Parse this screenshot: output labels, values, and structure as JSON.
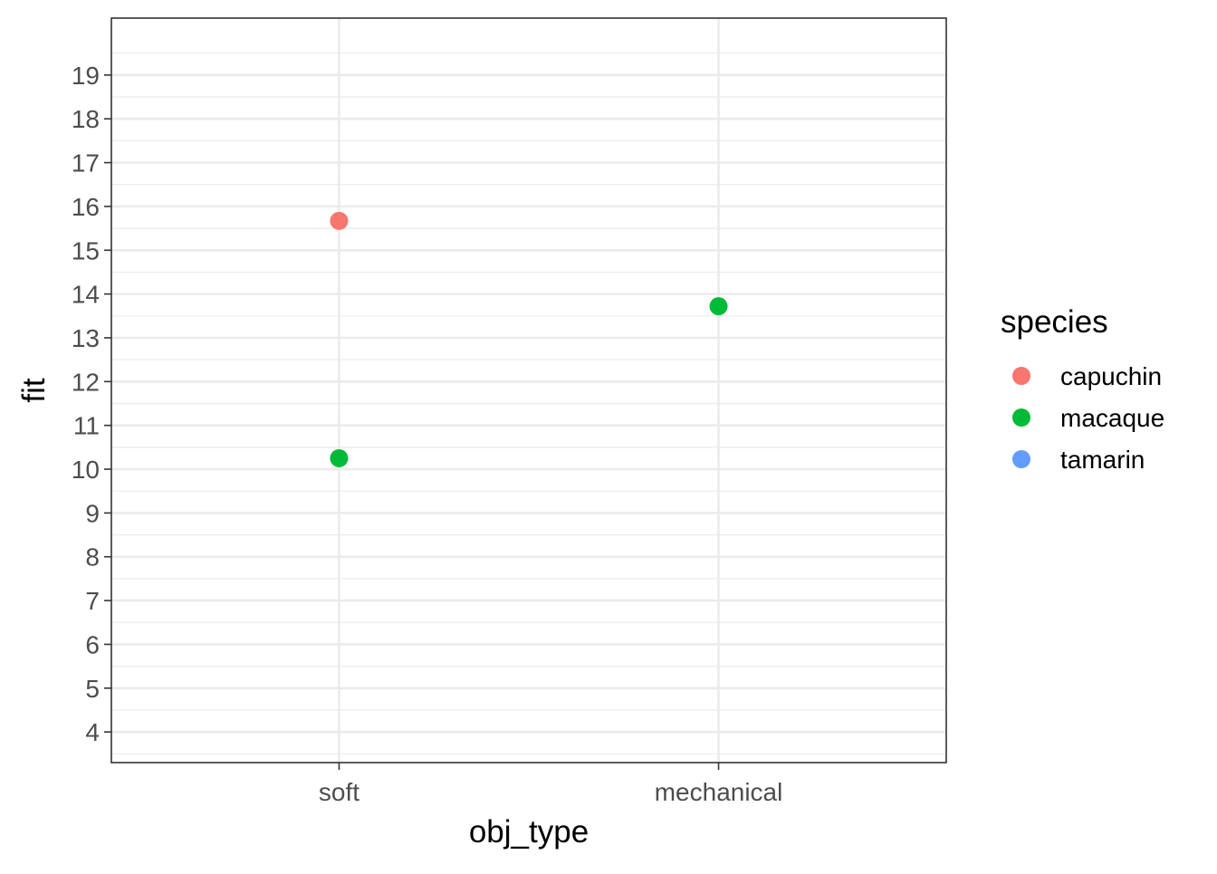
{
  "chart_data": {
    "type": "scatter",
    "xlabel": "obj_type",
    "ylabel": "fit",
    "categories": [
      "soft",
      "mechanical"
    ],
    "ylim": [
      3.3,
      20.3
    ],
    "y_ticks": [
      "4",
      "5",
      "6",
      "7",
      "8",
      "9",
      "10",
      "11",
      "12",
      "13",
      "14",
      "15",
      "16",
      "17",
      "18",
      "19"
    ],
    "grid": true,
    "legend": {
      "title": "species",
      "placement": "right",
      "entries": [
        {
          "label": "capuchin",
          "color": "#F8766D"
        },
        {
          "label": "macaque",
          "color": "#00BA38"
        },
        {
          "label": "tamarin",
          "color": "#619CFF"
        }
      ]
    },
    "series": [
      {
        "name": "capuchin",
        "color": "#F8766D",
        "points": [
          {
            "x": "soft",
            "y": 15.67
          }
        ]
      },
      {
        "name": "macaque",
        "color": "#00BA38",
        "points": [
          {
            "x": "soft",
            "y": 10.25
          },
          {
            "x": "mechanical",
            "y": 13.72
          }
        ]
      },
      {
        "name": "tamarin",
        "color": "#619CFF",
        "points": []
      }
    ]
  }
}
